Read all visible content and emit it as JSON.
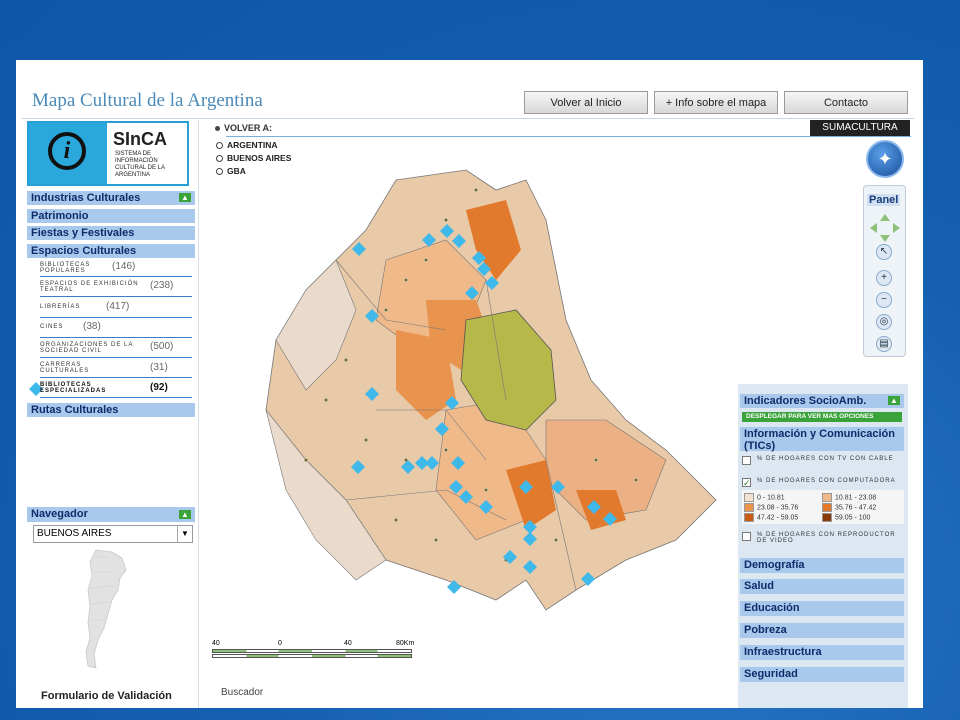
{
  "app": {
    "title": "Mapa Cultural de la Argentina",
    "buttons": [
      "Volver al Inicio",
      "+ Info sobre el mapa",
      "Contacto"
    ]
  },
  "logo": {
    "name": "SInCA",
    "subtitle": "SISTEMA DE INFORMACIÓN CULTURAL DE LA ARGENTINA"
  },
  "sidebar": {
    "categories": [
      "Industrias Culturales",
      "Patrimonio",
      "Fiestas y Festivales",
      "Espacios Culturales"
    ],
    "items": [
      {
        "label": "BIBLIOTECAS POPULARES",
        "count": "(146)"
      },
      {
        "label": "ESPACIOS DE EXHIBICIÓN TEATRAL",
        "count": "(238)"
      },
      {
        "label": "LIBRERÍAS",
        "count": "(417)"
      },
      {
        "label": "CINES",
        "count": "(38)"
      },
      {
        "label": "ORGANIZACIONES DE LA SOCIEDAD CIVIL",
        "count": "(500)"
      },
      {
        "label": "CARRERAS CULTURALES",
        "count": "(31)"
      },
      {
        "label": "BIBLIOTECAS ESPECIALIZADAS",
        "count": "(92)"
      }
    ],
    "rutas": "Rutas Culturales"
  },
  "navegador": {
    "title": "Navegador",
    "selected": "BUENOS AIRES"
  },
  "footer": {
    "form_label": "Formulario de Validación",
    "buscador": "Buscador"
  },
  "breadcrumb": {
    "volver": "VOLVER A:",
    "items": [
      "ARGENTINA",
      "BUENOS AIRES",
      "GBA"
    ]
  },
  "brand": "SUMACULTURA",
  "panel": {
    "title": "Panel"
  },
  "indicators": {
    "header": "Indicadores SocioAmb.",
    "desplegar": "DESPLEGAR PARA VER MAS OPCIONES",
    "tics": "Información y Comunicación (TICs)",
    "options": [
      {
        "label": "% DE HOGARES CON TV CON CABLE",
        "checked": false
      },
      {
        "label": "% DE HOGARES CON COMPUTADORA",
        "checked": true
      },
      {
        "label": "% DE HOGARES CON REPRODUCTOR DE VIDEO",
        "checked": false
      }
    ],
    "legend": [
      {
        "range": "0 - 10.81",
        "color": "#f3e2cf"
      },
      {
        "range": "10.81 - 23.08",
        "color": "#efb98a"
      },
      {
        "range": "23.08 - 35.76",
        "color": "#e8934e"
      },
      {
        "range": "35.76 - 47.42",
        "color": "#e27a2e"
      },
      {
        "range": "47.42 - 59.05",
        "color": "#c85a14"
      },
      {
        "range": "59.05 - 100",
        "color": "#8a3a08"
      }
    ],
    "sections": [
      "Demografía",
      "Salud",
      "Educación",
      "Pobreza",
      "Infraestructura",
      "Seguridad"
    ]
  },
  "scale": {
    "labels": [
      "40",
      "0",
      "40",
      "80Km"
    ]
  },
  "colors": {
    "slide_bg": "#1660b0",
    "category_bg": "#a8c8ec",
    "marker": "#3fb8ea",
    "caba": "#b6b84a",
    "accent_green": "#3aa33a"
  }
}
